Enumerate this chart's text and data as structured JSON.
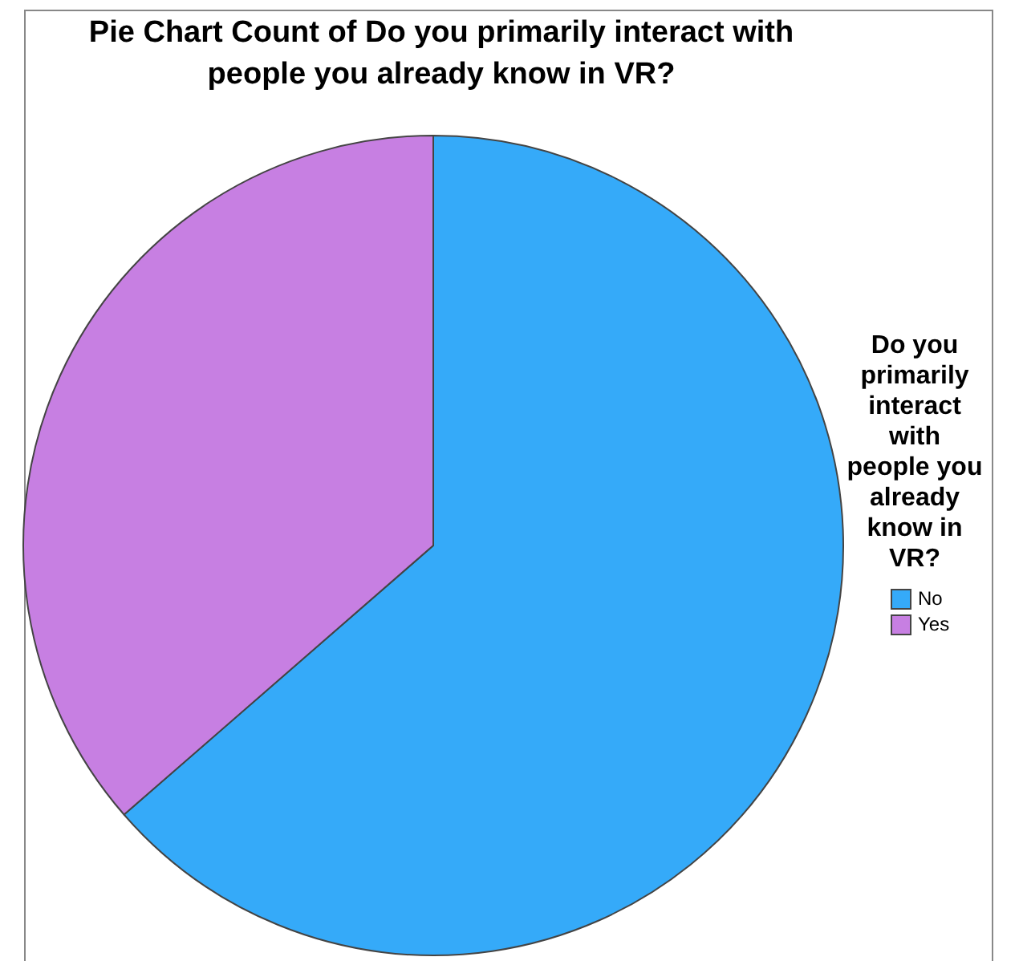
{
  "chart_data": {
    "type": "pie",
    "title": "Pie Chart Count of Do you primarily interact with people you already know in VR?",
    "legend_title": "Do you primarily interact with people you already know in VR?",
    "legend": "right",
    "categories": [
      "No",
      "Yes"
    ],
    "values": [
      63.6,
      36.4
    ],
    "colors": [
      "#35aaf9",
      "#c77fe2"
    ]
  }
}
